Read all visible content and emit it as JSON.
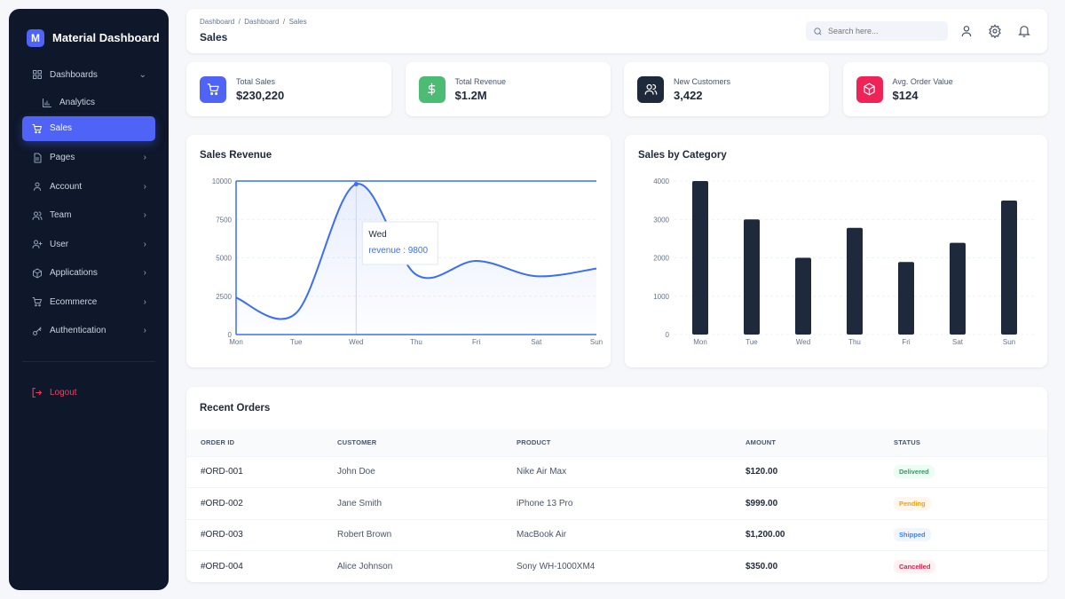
{
  "sidebar": {
    "brand_letter": "M",
    "brand_name": "Material Dashboard",
    "items": [
      {
        "label": "Dashboards",
        "icon": "grid-icon",
        "expanded": true
      },
      {
        "label": "Analytics",
        "icon": "bar-chart-icon",
        "sub": true
      },
      {
        "label": "Sales",
        "icon": "cart-icon",
        "sub": true,
        "active": true
      },
      {
        "label": "Pages",
        "icon": "file-icon"
      },
      {
        "label": "Account",
        "icon": "user-icon"
      },
      {
        "label": "Team",
        "icon": "users-icon"
      },
      {
        "label": "User",
        "icon": "user-plus-icon"
      },
      {
        "label": "Applications",
        "icon": "box-icon"
      },
      {
        "label": "Ecommerce",
        "icon": "cart-icon"
      },
      {
        "label": "Authentication",
        "icon": "key-icon"
      }
    ],
    "logout": "Logout"
  },
  "header": {
    "breadcrumb": [
      "Dashboard",
      "Dashboard",
      "Sales"
    ],
    "separator": "/",
    "title": "Sales",
    "search_placeholder": "Search here..."
  },
  "stats": [
    {
      "label": "Total Sales",
      "value": "$230,220",
      "color": "#4f63f7",
      "icon": "cart-icon"
    },
    {
      "label": "Total Revenue",
      "value": "$1.2M",
      "color": "#4cbb73",
      "icon": "dollar-icon"
    },
    {
      "label": "New Customers",
      "value": "3,422",
      "color": "#1e293b",
      "icon": "users-icon"
    },
    {
      "label": "Avg. Order Value",
      "value": "$124",
      "color": "#ef2357",
      "icon": "box-icon"
    }
  ],
  "chart_data": [
    {
      "type": "area",
      "title": "Sales Revenue",
      "categories": [
        "Mon",
        "Tue",
        "Wed",
        "Thu",
        "Fri",
        "Sat",
        "Sun"
      ],
      "series": [
        {
          "name": "revenue",
          "values": [
            2400,
            1400,
            9800,
            3900,
            4800,
            3800,
            4300
          ]
        }
      ],
      "ylim": [
        0,
        10000
      ],
      "yticks": [
        0,
        2500,
        5000,
        7500,
        10000
      ],
      "grid": true,
      "color": "#3b6ef5",
      "tooltip": {
        "category": "Wed",
        "label": "revenue : 9800"
      }
    },
    {
      "type": "bar",
      "title": "Sales by Category",
      "categories": [
        "Mon",
        "Tue",
        "Wed",
        "Thu",
        "Fri",
        "Sat",
        "Sun"
      ],
      "values": [
        4000,
        3000,
        2000,
        2780,
        1890,
        2390,
        3490
      ],
      "ylim": [
        0,
        4000
      ],
      "yticks": [
        0,
        1000,
        2000,
        3000,
        4000
      ],
      "grid": true,
      "color": "#1e293b"
    }
  ],
  "orders": {
    "title": "Recent Orders",
    "columns": [
      "ORDER ID",
      "CUSTOMER",
      "PRODUCT",
      "AMOUNT",
      "STATUS"
    ],
    "rows": [
      {
        "id": "#ORD-001",
        "customer": "John Doe",
        "product": "Nike Air Max",
        "amount": "$120.00",
        "status": "Delivered",
        "color": "#22a55b",
        "bg": "#ecfdf3"
      },
      {
        "id": "#ORD-002",
        "customer": "Jane Smith",
        "product": "iPhone 13 Pro",
        "amount": "$999.00",
        "status": "Pending",
        "color": "#f59e0b",
        "bg": "#fff7ed"
      },
      {
        "id": "#ORD-003",
        "customer": "Robert Brown",
        "product": "MacBook Air",
        "amount": "$1,200.00",
        "status": "Shipped",
        "color": "#3b82f6",
        "bg": "#eff6ff"
      },
      {
        "id": "#ORD-004",
        "customer": "Alice Johnson",
        "product": "Sony WH-1000XM4",
        "amount": "$350.00",
        "status": "Cancelled",
        "color": "#e11d48",
        "bg": "#fff1f2"
      }
    ]
  }
}
